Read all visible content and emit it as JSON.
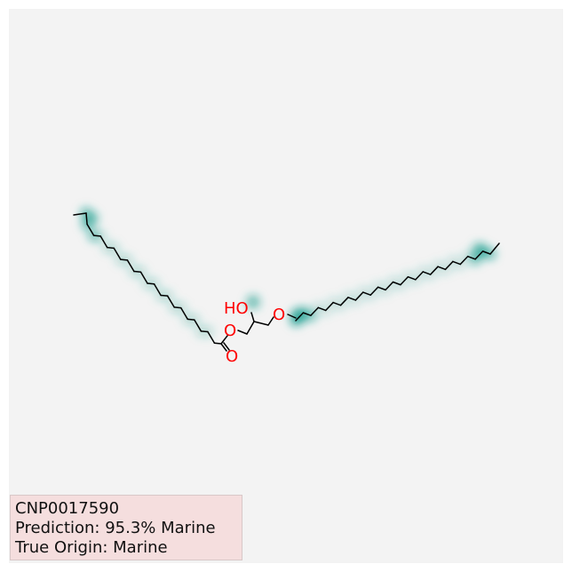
{
  "molecule": {
    "id": "CNP0017590",
    "atom_labels": {
      "hydroxyl": "HO",
      "ester_oxygen": "O",
      "carbonyl_oxygen": "O",
      "ether_oxygen": "O"
    },
    "highlight_color": "#1a9e8f",
    "bond_color": "#000000",
    "heteroatom_color": "#ff0000"
  },
  "info": {
    "compound_id": "CNP0017590",
    "prediction": "Prediction: 95.3% Marine",
    "true_origin": "True Origin: Marine"
  }
}
